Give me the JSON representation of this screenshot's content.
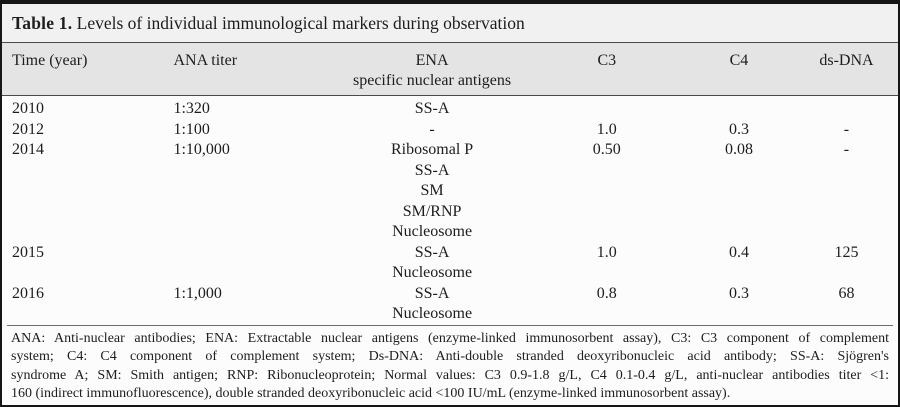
{
  "title": {
    "label": "Table 1.",
    "text": "Levels of individual immunological markers during observation"
  },
  "colors": {
    "border": "#161616",
    "title_bg": "#f1f1f1",
    "header_bg": "#e4e4e4",
    "body_bg": "#fcfcfc",
    "rule": "#4a4a4a",
    "footnote_rule": "#6d6d6d",
    "text": "#1d1d1d"
  },
  "table": {
    "headers": {
      "time": "Time (year)",
      "ana": "ANA titer",
      "ena_line1": "ENA",
      "ena_line2": "specific nuclear antigens",
      "c3": "C3",
      "c4": "C4",
      "dsdna": "ds-DNA"
    },
    "rows": [
      {
        "year": "2010",
        "ana": "1:320",
        "ena": [
          "SS-A"
        ],
        "c3": "",
        "c4": "",
        "dsdna": ""
      },
      {
        "year": "2012",
        "ana": "1:100",
        "ena": [
          "-"
        ],
        "c3": "1.0",
        "c4": "0.3",
        "dsdna": "-"
      },
      {
        "year": "2014",
        "ana": "1:10,000",
        "ena": [
          "Ribosomal P",
          "SS-A",
          "SM",
          "SM/RNP",
          "Nucleosome"
        ],
        "c3": "0.50",
        "c4": "0.08",
        "dsdna": "-"
      },
      {
        "year": "2015",
        "ana": "",
        "ena": [
          "SS-A",
          "Nucleosome"
        ],
        "c3": "1.0",
        "c4": "0.4",
        "dsdna": "125"
      },
      {
        "year": "2016",
        "ana": "1:1,000",
        "ena": [
          "SS-A",
          "Nucleosome"
        ],
        "c3": "0.8",
        "c4": "0.3",
        "dsdna": "68"
      }
    ]
  },
  "footnote": {
    "lines": [
      "ANA: Anti-nuclear antibodies; ENA: Extractable nuclear antigens (enzyme-linked immunosorbent assay), C3: C3 component of complement",
      "system; C4: C4 component of complement system; Ds-DNA: Anti-double stranded deoxyribonucleic acid antibody; SS-A: Sjögren's",
      "syndrome A; SM: Smith antigen; RNP: Ribonucleoprotein; Normal values: C3 0.9-1.8 g/L, C4 0.1-0.4 g/L, anti-nuclear antibodies titer <1:",
      "160 (indirect immunofluorescence), double stranded deoxyribonucleic acid <100 IU/mL (enzyme-linked immunosorbent assay)."
    ]
  }
}
